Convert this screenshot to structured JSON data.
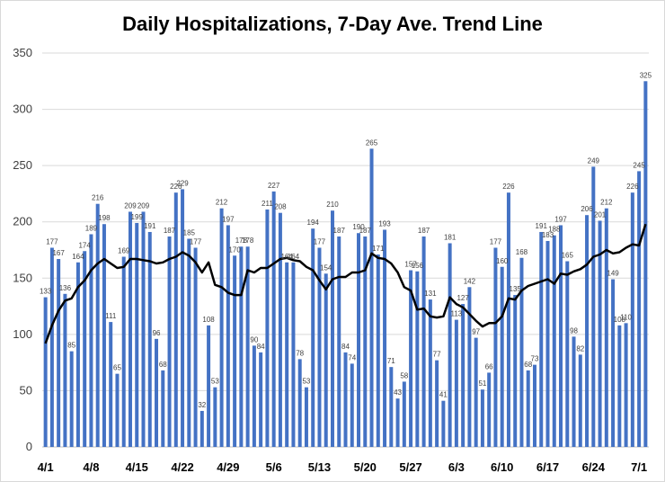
{
  "chart_data": {
    "type": "bar",
    "title": "Daily Hospitalizations, 7-Day Ave. Trend Line",
    "ylim": [
      0,
      350
    ],
    "yticks": [
      0,
      50,
      100,
      150,
      200,
      250,
      300,
      350
    ],
    "grid": true,
    "x_tick_labels": [
      "4/1",
      "4/8",
      "4/15",
      "4/22",
      "4/29",
      "5/6",
      "5/13",
      "5/20",
      "5/27",
      "6/3",
      "6/10",
      "6/17",
      "6/24",
      "7/1"
    ],
    "bar_color": "#4472c4",
    "line_color": "#000000",
    "series": [
      {
        "name": "",
        "kind": "bar",
        "values": [
          133,
          177,
          167,
          136,
          85,
          164,
          174,
          189,
          216,
          198,
          111,
          65,
          169,
          209,
          199,
          209,
          191,
          96,
          68,
          187,
          226,
          229,
          185,
          177,
          32,
          108,
          53,
          212,
          197,
          170,
          178,
          178,
          90,
          84,
          211,
          227,
          208,
          164,
          164,
          78,
          53,
          194,
          177,
          154,
          210,
          187,
          84,
          74,
          190,
          187,
          265,
          171,
          193,
          71,
          43,
          58,
          157,
          156,
          187,
          131,
          77,
          41,
          181,
          113,
          127,
          142,
          97,
          51,
          66,
          177,
          160,
          226,
          135,
          168,
          68,
          73,
          191,
          183,
          188,
          197,
          165,
          98,
          82,
          206,
          249,
          201,
          212,
          149,
          108,
          110,
          226,
          245,
          325
        ],
        "labels": [
          "133",
          "177",
          "167",
          "136",
          "85",
          "164",
          "174",
          "189",
          "216",
          "198",
          "111",
          "65",
          "169",
          "209",
          "199",
          "209",
          "191",
          "96",
          "68",
          "187",
          "226",
          "229",
          "185",
          "177",
          "32",
          "108",
          "53",
          "212",
          "197",
          "170",
          "178",
          "178",
          "90",
          "84",
          "211",
          "227",
          "208",
          "164",
          "164",
          "78",
          "53",
          "194",
          "177",
          "154",
          "210",
          "187",
          "84",
          "74",
          "190",
          "187",
          "265",
          "171",
          "193",
          "71",
          "43",
          "58",
          "157",
          "156",
          "187",
          "131",
          "77",
          "41",
          "181",
          "113",
          "127",
          "142",
          "97",
          "51",
          "66",
          "177",
          "160",
          "226",
          "135",
          "168",
          "68",
          "73",
          "191",
          "183",
          "188",
          "197",
          "165",
          "98",
          "82",
          "206",
          "249",
          "201",
          "212",
          "149",
          "108",
          "110",
          "226",
          "245",
          "325"
        ]
      },
      {
        "name": "",
        "kind": "line",
        "values": [
          92,
          108,
          121,
          130,
          132,
          142,
          148,
          157,
          163,
          167,
          163,
          159,
          160,
          167,
          167,
          166,
          165,
          163,
          164,
          167,
          169,
          173,
          170,
          164,
          155,
          164,
          144,
          142,
          137,
          135,
          135,
          157,
          155,
          159,
          159,
          163,
          167,
          168,
          166,
          165,
          160,
          157,
          148,
          140,
          149,
          151,
          151,
          155,
          155,
          157,
          172,
          168,
          167,
          163,
          155,
          142,
          139,
          122,
          123,
          116,
          115,
          116,
          133,
          127,
          124,
          118,
          112,
          107,
          110,
          110,
          116,
          132,
          131,
          139,
          143,
          145,
          147,
          149,
          145,
          154,
          153,
          156,
          158,
          162,
          169,
          171,
          175,
          172,
          173,
          177,
          180,
          179,
          198
        ]
      }
    ]
  }
}
